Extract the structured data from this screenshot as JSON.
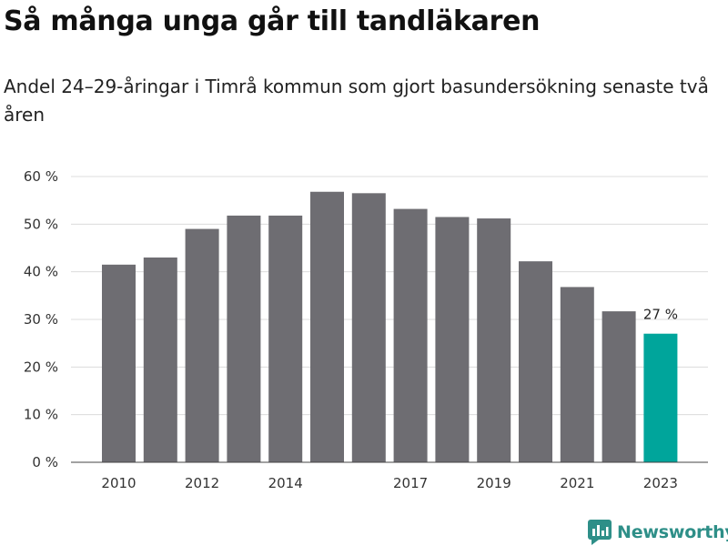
{
  "chart_data": {
    "type": "bar",
    "title": "Så många unga går till tandläkaren",
    "subtitle": "Andel 24–29-åringar i Timrå kommun som gjort basundersökning senaste två åren",
    "categories": [
      "2010",
      "2011",
      "2012",
      "2013",
      "2014",
      "2015",
      "2016",
      "2017",
      "2018",
      "2019",
      "2020",
      "2021",
      "2022",
      "2023"
    ],
    "x_tick_labels": [
      "2010",
      "",
      "2012",
      "",
      "2014",
      "",
      "",
      "2017",
      "",
      "2019",
      "",
      "2021",
      "",
      "2023"
    ],
    "values": [
      41.5,
      43,
      49,
      51.8,
      51.8,
      56.8,
      56.5,
      53.2,
      51.5,
      51.2,
      42.2,
      36.8,
      31.7,
      27
    ],
    "ylim": [
      0,
      60
    ],
    "y_ticks": [
      0,
      10,
      20,
      30,
      40,
      50,
      60
    ],
    "y_tick_labels": [
      "0 %",
      "10 %",
      "20 %",
      "30 %",
      "40 %",
      "50 %",
      "60 %"
    ],
    "highlight_index": 13,
    "highlight_label": "27 %",
    "grid": true,
    "colors": {
      "bar": "#6e6d72",
      "highlight": "#00a59b",
      "grid": "#dcdcdc",
      "axis": "#444444"
    }
  },
  "brand": {
    "name": "Newsworthy",
    "icon": "newsworthy-logo-icon"
  }
}
